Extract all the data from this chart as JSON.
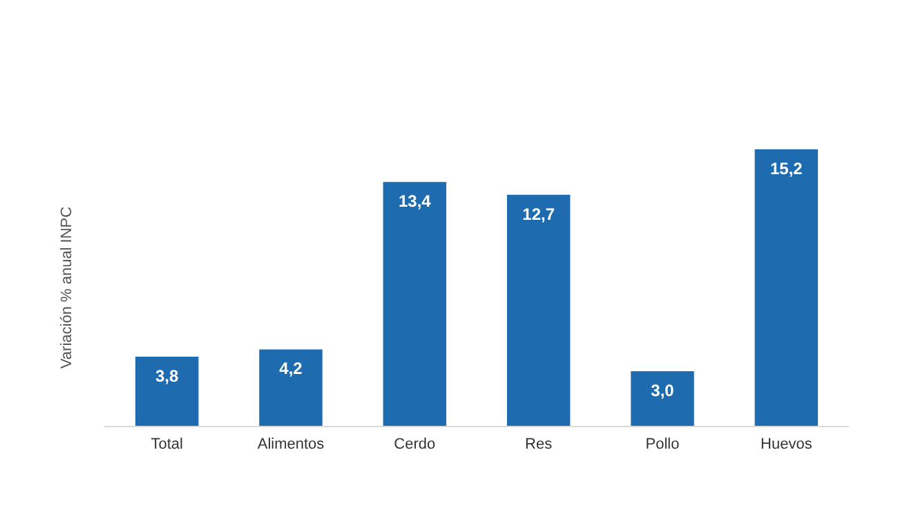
{
  "chart_data": {
    "type": "bar",
    "ylabel": "Variación % anual INPC",
    "categories": [
      "Total",
      "Alimentos",
      "Cerdo",
      "Res",
      "Pollo",
      "Huevos"
    ],
    "values": [
      3.8,
      4.2,
      13.4,
      12.7,
      3.0,
      15.2
    ],
    "value_labels": [
      "3,8",
      "4,2",
      "13,4",
      "12,7",
      "3,0",
      "15,2"
    ],
    "color": "#1f6bb0",
    "grid": false
  }
}
